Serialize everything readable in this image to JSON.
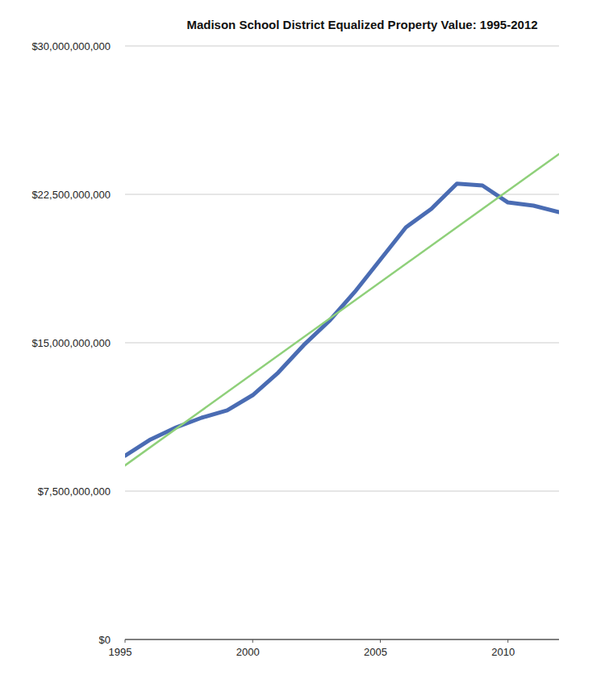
{
  "chart_data": {
    "type": "line",
    "title": "Madison School District Equalized Property Value: 1995-2012",
    "xlim": [
      1995,
      2012
    ],
    "xticks": [
      1995,
      2000,
      2005,
      2010
    ],
    "ylim": [
      0,
      30000000000
    ],
    "yticks": [
      {
        "value": 0,
        "label": "$0"
      },
      {
        "value": 7500000000,
        "label": "$7,500,000,000"
      },
      {
        "value": 15000000000,
        "label": "$15,000,000,000"
      },
      {
        "value": 22500000000,
        "label": "$22,500,000,000"
      },
      {
        "value": 30000000000,
        "label": "$30,000,000,000"
      }
    ],
    "grid": true,
    "series": [
      {
        "color": "#4a6cb3",
        "x": [
          1995,
          1996,
          1997,
          1998,
          1999,
          2000,
          2001,
          2002,
          2003,
          2004,
          2005,
          2006,
          2007,
          2008,
          2009,
          2010,
          2011,
          2012
        ],
        "values": [
          9290000000,
          10110000000,
          10720000000,
          11210000000,
          11580000000,
          12350000000,
          13490000000,
          14880000000,
          16100000000,
          17570000000,
          19200000000,
          20830000000,
          21770000000,
          23040000000,
          22950000000,
          22090000000,
          21930000000,
          21600000000
        ]
      },
      {
        "color": "#8fd07a",
        "x": [
          1995,
          2012
        ],
        "values": [
          8800000000,
          24540000000
        ]
      }
    ]
  }
}
